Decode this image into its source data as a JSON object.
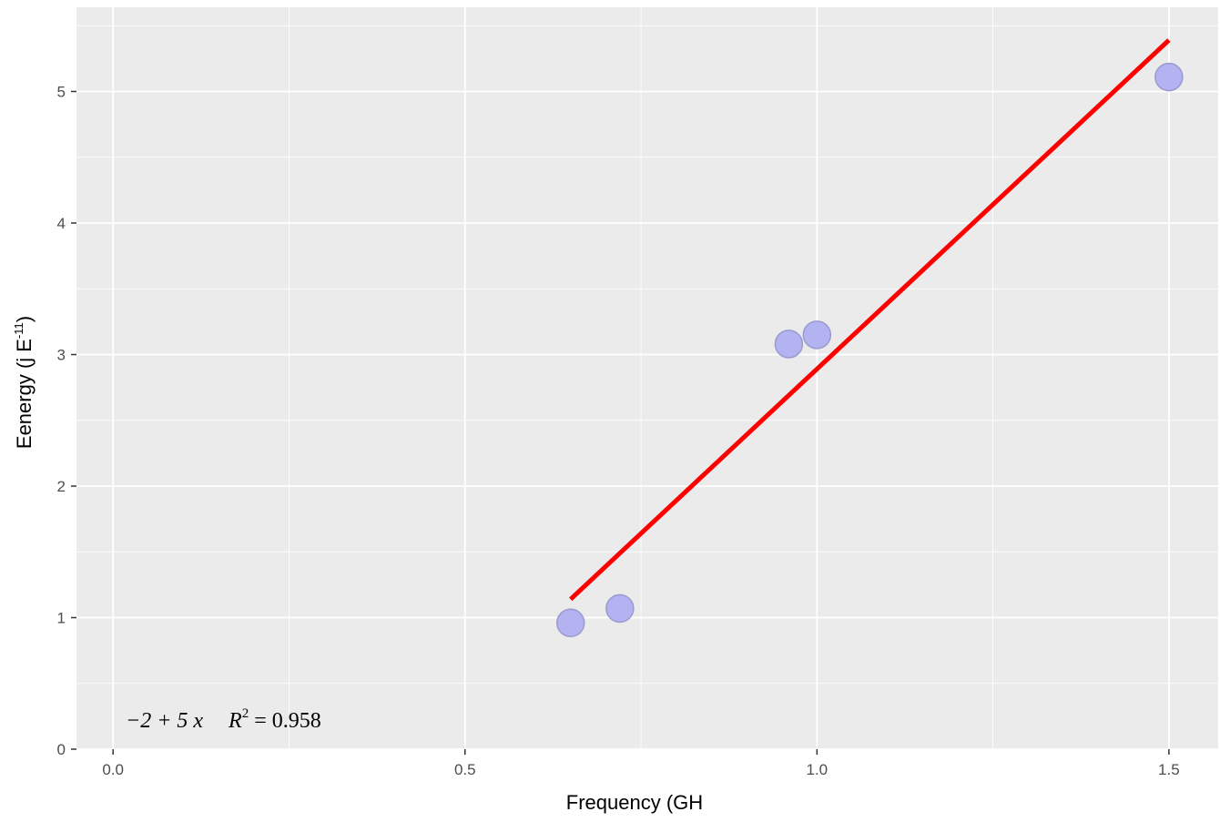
{
  "chart_data": {
    "type": "scatter",
    "xlabel": "Frequency (GH",
    "ylabel": {
      "main": "Eenergy (j E",
      "superscript": "-11",
      "close": ")"
    },
    "x_ticks": [
      "0.0",
      "0.5",
      "1.0",
      "1.5"
    ],
    "y_ticks": [
      "0",
      "1",
      "2",
      "3",
      "4",
      "5"
    ],
    "xlim": [
      -0.052,
      1.57
    ],
    "ylim": [
      0,
      5.64
    ],
    "grid": true,
    "background_color": "#ebebeb",
    "grid_color": "#ffffff",
    "points": {
      "x": [
        0.65,
        0.72,
        0.96,
        1.0,
        1.5
      ],
      "y": [
        0.96,
        1.07,
        3.08,
        3.15,
        5.11
      ],
      "color": "#b3b3f2",
      "stroke": "#9a9ad0"
    },
    "fit_line": {
      "intercept": -2.11,
      "slope": 5.0,
      "x_range": [
        0.65,
        1.5
      ],
      "color": "#ff0000"
    },
    "annotation": {
      "equation": "−2 + 5 x",
      "r2_label": "R",
      "r2_exponent": "2",
      "r2_value": " = 0.958"
    }
  }
}
